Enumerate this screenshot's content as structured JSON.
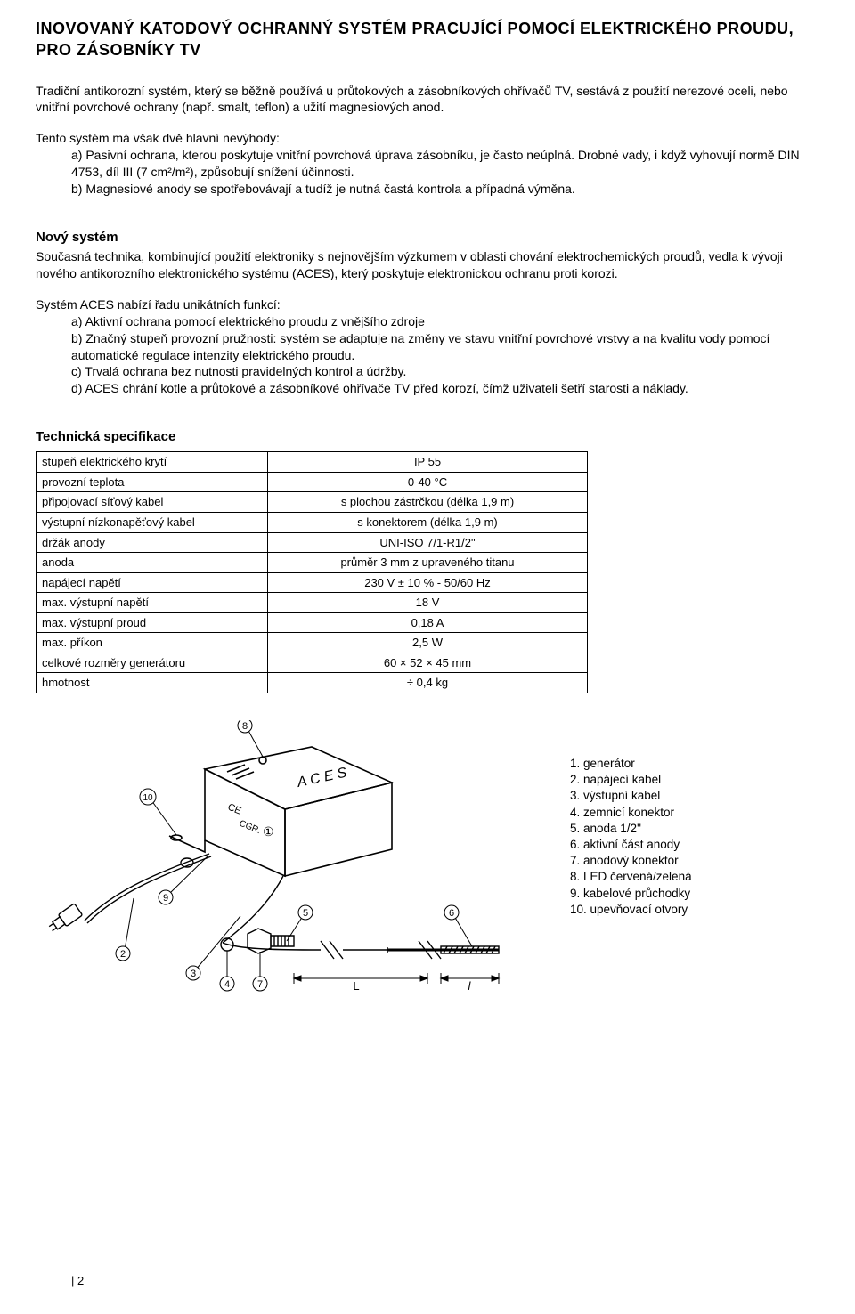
{
  "title": "INOVOVANÝ KATODOVÝ OCHRANNÝ SYSTÉM PRACUJÍCÍ POMOCÍ ELEKTRICKÉHO PROUDU, PRO ZÁSOBNÍKY TV",
  "intro": "Tradiční antikorozní systém, který se běžně používá u průtokových a zásobníkových ohřívačů TV, sestává z použití nerezové oceli, nebo vnitřní povrchové ochrany (např. smalt, teflon) a užití magnesiových anod.",
  "drawbacks_lead": "Tento systém má však dvě hlavní nevýhody:",
  "drawback_a": "a) Pasivní ochrana, kterou poskytuje vnitřní povrchová úprava zásobníku, je často neúplná. Drobné vady, i když vyhovují normě DIN 4753, díl III (7 cm²/m²), způsobují snížení účinnosti.",
  "drawback_b": "b) Magnesiové anody se spotřebovávají a tudíž je nutná častá kontrola a případná výměna.",
  "novy_head": "Nový systém",
  "novy_para": "Současná technika, kombinující použití elektroniky s nejnovějším výzkumem v oblasti chování elektrochemických proudů, vedla k vývoji nového antikorozního elektronického systému (ACES), který poskytuje elektronickou ochranu proti korozi.",
  "aces_lead": "Systém ACES nabízí řadu unikátních funkcí:",
  "aces_a": "a) Aktivní ochrana pomocí elektrického proudu z vnějšího zdroje",
  "aces_b": "b) Značný stupeň provozní pružnosti: systém se adaptuje na změny ve stavu vnitřní povrchové vrstvy a na kvalitu vody pomocí automatické regulace intenzity elektrického proudu.",
  "aces_c": "c) Trvalá ochrana bez nutnosti pravidelných kontrol a údržby.",
  "aces_d": "d) ACES chrání kotle a průtokové a zásobníkové ohřívače TV před korozí, čímž uživateli šetří starosti a náklady.",
  "tech_head": "Technická specifikace",
  "table": {
    "rows": [
      [
        "stupeň elektrického krytí",
        "IP 55"
      ],
      [
        "provozní teplota",
        "0-40 °C"
      ],
      [
        "připojovací síťový kabel",
        "s plochou zástrčkou (délka 1,9 m)"
      ],
      [
        "výstupní nízkonapěťový kabel",
        "s konektorem (délka 1,9 m)"
      ],
      [
        "držák anody",
        "UNI-ISO 7/1-R1/2\""
      ],
      [
        "anoda",
        "průměr 3 mm z upraveného titanu"
      ],
      [
        "napájecí napětí",
        "230 V ± 10 % - 50/60 Hz"
      ],
      [
        "max. výstupní napětí",
        "18 V"
      ],
      [
        "max. výstupní proud",
        "0,18 A"
      ],
      [
        "max. příkon",
        "2,5 W"
      ],
      [
        "celkové rozměry generátoru",
        "60 × 52 × 45 mm"
      ],
      [
        "hmotnost",
        "÷ 0,4 kg"
      ]
    ]
  },
  "legend": [
    "1. generátor",
    "2. napájecí kabel",
    "3. výstupní kabel",
    "4. zemnicí konektor",
    "5. anoda 1/2\"",
    "6. aktivní část anody",
    "7. anodový konektor",
    "8. LED červená/zelená",
    "9. kabelové průchodky",
    "10. upevňovací otvory"
  ],
  "diagram": {
    "box_label": "A C E S",
    "ce_mark": "CE",
    "cgr": "CGR.",
    "callouts": [
      "1",
      "2",
      "3",
      "4",
      "5",
      "6",
      "7",
      "8",
      "9",
      "10"
    ],
    "dim_L": "L",
    "dim_l": "l",
    "stroke": "#000000",
    "bg": "#ffffff"
  },
  "page": "| 2"
}
